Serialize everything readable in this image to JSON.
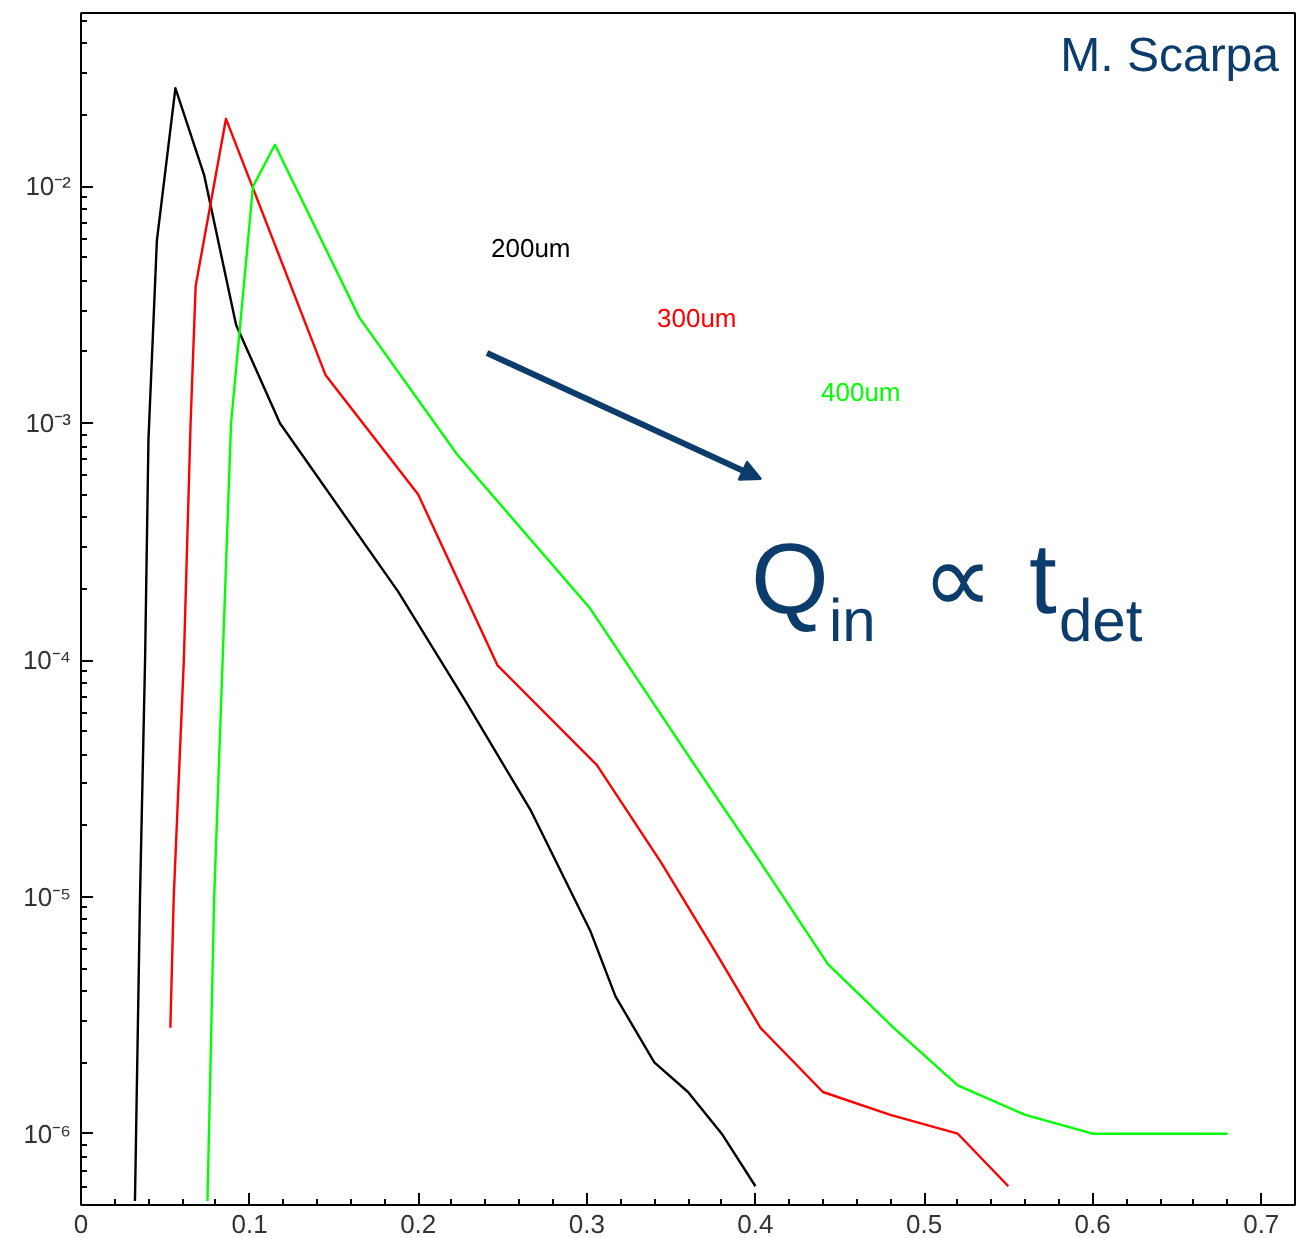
{
  "chart_data": {
    "type": "line",
    "log": "y",
    "grid": false,
    "marker": "none",
    "line_style": "solid",
    "xlim": [
      0,
      0.72
    ],
    "ylim": [
      5e-07,
      0.054
    ],
    "xticks": [
      0,
      0.1,
      0.2,
      0.3,
      0.4,
      0.5,
      0.6,
      0.7
    ],
    "yticks": [
      {
        "value": 1e-06,
        "label": "10⁻⁶"
      },
      {
        "value": 1e-05,
        "label": "10⁻⁵"
      },
      {
        "value": 0.0001,
        "label": "10⁻⁴"
      },
      {
        "value": 0.001,
        "label": "10⁻³"
      },
      {
        "value": 0.01,
        "label": "10⁻²"
      }
    ],
    "series": [
      {
        "name": "200um",
        "color": "#000000",
        "x": [
          0.032,
          0.035,
          0.038,
          0.04,
          0.045,
          0.056,
          0.073,
          0.092,
          0.118,
          0.188,
          0.227,
          0.267,
          0.302,
          0.317,
          0.34,
          0.36,
          0.38,
          0.4
        ],
        "values": [
          5.2e-07,
          1e-05,
          0.0001,
          0.00085,
          0.0059,
          0.026,
          0.0112,
          0.0026,
          0.001,
          0.000195,
          6.9e-05,
          2.3e-05,
          7.2e-06,
          3.8e-06,
          2e-06,
          1.5e-06,
          1e-06,
          6e-07
        ]
      },
      {
        "name": "300um",
        "color": "#ff0000",
        "x": [
          0.053,
          0.055,
          0.061,
          0.065,
          0.068,
          0.086,
          0.106,
          0.145,
          0.2,
          0.247,
          0.306,
          0.344,
          0.376,
          0.403,
          0.44,
          0.48,
          0.52,
          0.55
        ],
        "values": [
          2.8e-06,
          1e-05,
          0.0001,
          0.001,
          0.0038,
          0.0193,
          0.0083,
          0.0016,
          0.0005,
          9.5e-05,
          3.6e-05,
          1.4e-05,
          5.9e-06,
          2.8e-06,
          1.5e-06,
          1.2e-06,
          1e-06,
          6e-07
        ]
      },
      {
        "name": "400um",
        "color": "#00ff00",
        "x": [
          0.075,
          0.079,
          0.084,
          0.089,
          0.102,
          0.115,
          0.165,
          0.223,
          0.302,
          0.364,
          0.403,
          0.443,
          0.482,
          0.52,
          0.56,
          0.6,
          0.64,
          0.68
        ],
        "values": [
          5.2e-07,
          1e-05,
          0.0001,
          0.001,
          0.01,
          0.015,
          0.0028,
          0.00074,
          0.000165,
          3.6e-05,
          1.4e-05,
          5.2e-06,
          2.8e-06,
          1.6e-06,
          1.2e-06,
          1e-06,
          1e-06,
          1e-06
        ]
      }
    ],
    "annotations": [
      "M. Scarpa",
      "Q$_{in}$ ∝ t$_{det}$"
    ]
  }
}
